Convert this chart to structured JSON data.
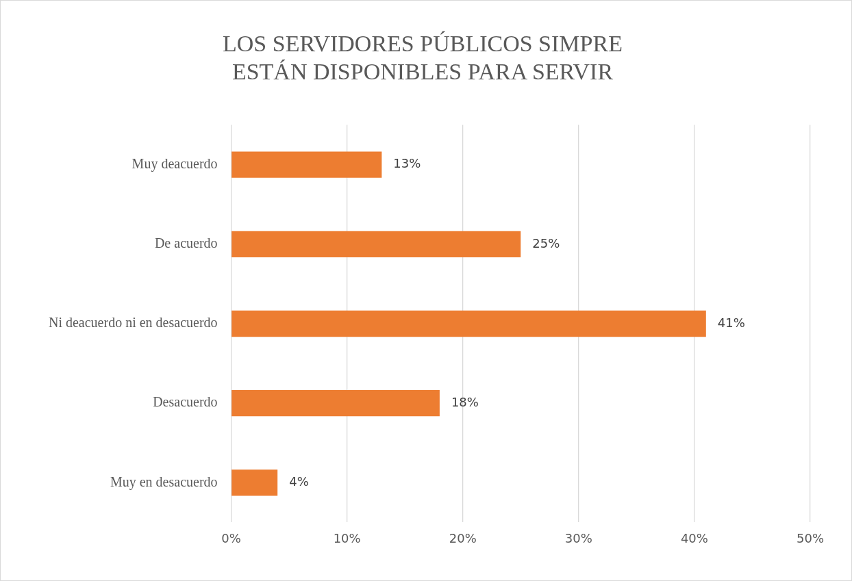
{
  "chart_data": {
    "type": "bar",
    "orientation": "horizontal",
    "title": "LOS SERVIDORES PÚBLICOS SIMPRE ESTÁN DISPONIBLES PARA SERVIR",
    "categories": [
      "Muy deacuerdo",
      "De acuerdo",
      "Ni deacuerdo ni en desacuerdo",
      "Desacuerdo",
      "Muy en desacuerdo"
    ],
    "values": [
      13,
      25,
      41,
      18,
      4
    ],
    "color": "#ed7d31",
    "data_labels": true,
    "value_labels": [
      "13%",
      "25%",
      "41%",
      "18%",
      "4%"
    ],
    "xlim": [
      0,
      50
    ],
    "xticks": [
      {
        "value": 0,
        "label": "0%"
      },
      {
        "value": 10,
        "label": "10%"
      },
      {
        "value": 20,
        "label": "20%"
      },
      {
        "value": 30,
        "label": "30%"
      },
      {
        "value": 40,
        "label": "40%"
      },
      {
        "value": 50,
        "label": "50%"
      }
    ],
    "grid": "x",
    "legend": false
  }
}
